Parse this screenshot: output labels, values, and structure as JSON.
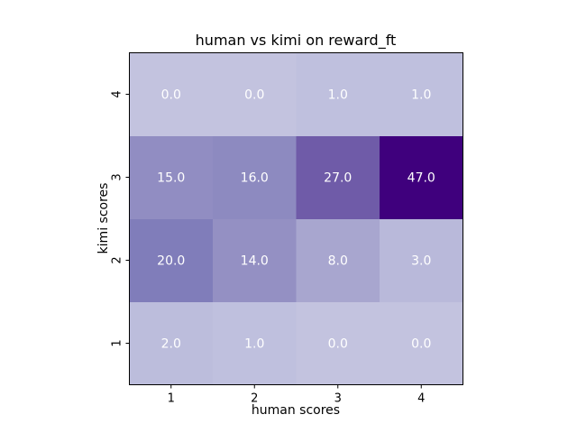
{
  "chart_data": {
    "type": "heatmap",
    "title": "human vs kimi on reward_ft",
    "xlabel": "human scores",
    "ylabel": "kimi scores",
    "x_categories": [
      "1",
      "2",
      "3",
      "4"
    ],
    "y_categories": [
      "1",
      "2",
      "3",
      "4"
    ],
    "y_order": "bottom-to-top",
    "values": [
      [
        2.0,
        1.0,
        0.0,
        0.0
      ],
      [
        20.0,
        14.0,
        8.0,
        3.0
      ],
      [
        15.0,
        16.0,
        27.0,
        47.0
      ],
      [
        0.0,
        0.0,
        1.0,
        1.0
      ]
    ],
    "value_labels": [
      [
        "2.0",
        "1.0",
        "0.0",
        "0.0"
      ],
      [
        "20.0",
        "14.0",
        "8.0",
        "3.0"
      ],
      [
        "15.0",
        "16.0",
        "27.0",
        "47.0"
      ],
      [
        "0.0",
        "0.0",
        "1.0",
        "1.0"
      ]
    ],
    "colormap": "Purples",
    "color_range": [
      -25,
      47
    ],
    "colorbar": false,
    "grid": false,
    "legend": "none",
    "cell_label_color": "#ffffff"
  }
}
